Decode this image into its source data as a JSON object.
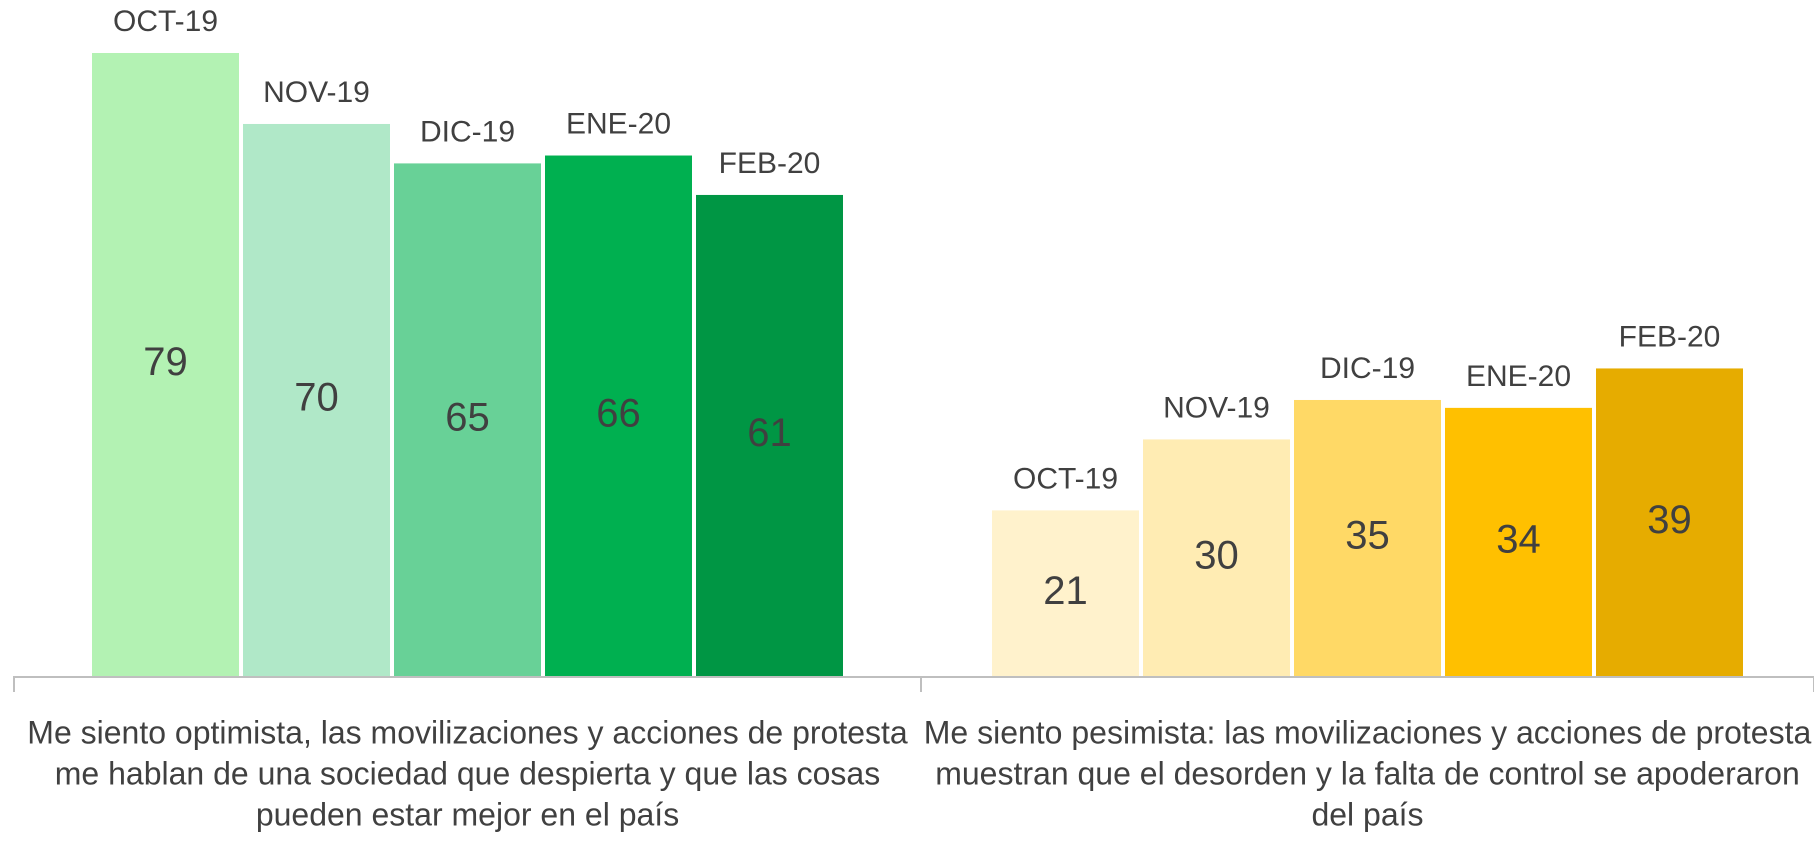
{
  "chart_data": {
    "type": "bar",
    "categories": [
      [
        "Me siento optimista, las movilizaciones y acciones de protesta",
        "me hablan de una sociedad que despierta y que las cosas",
        "pueden estar mejor en el país"
      ],
      [
        "Me siento pesimista: las movilizaciones y acciones de protesta",
        "muestran que el desorden y la falta de control se apoderaron",
        "del país"
      ]
    ],
    "series": [
      {
        "name": "OCT-19",
        "colors": [
          "#b3f2b3",
          "#fff2cc"
        ],
        "values": [
          79,
          21
        ]
      },
      {
        "name": "NOV-19",
        "colors": [
          "#b0e8c8",
          "#ffecb3"
        ],
        "values": [
          70,
          30
        ]
      },
      {
        "name": "DIC-19",
        "colors": [
          "#68d197",
          "#ffd966"
        ],
        "values": [
          65,
          35
        ]
      },
      {
        "name": "ENE-20",
        "colors": [
          "#00b050",
          "#ffc000"
        ],
        "values": [
          66,
          34
        ]
      },
      {
        "name": "FEB-20",
        "colors": [
          "#009644",
          "#e6ac00"
        ],
        "values": [
          61,
          39
        ]
      }
    ]
  }
}
